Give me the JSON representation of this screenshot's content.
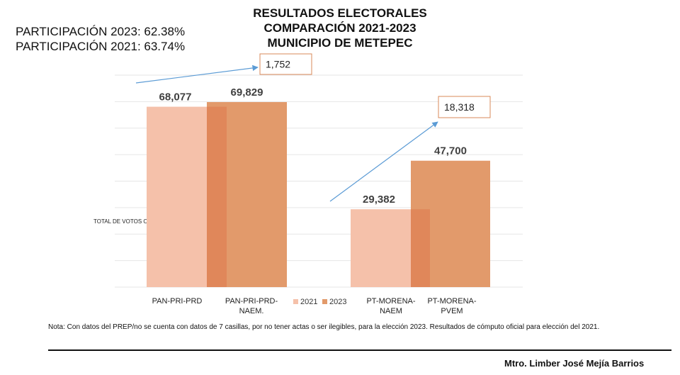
{
  "title_lines": [
    "RESULTADOS ELECTORALES",
    "COMPARACIÓN 2021-2023",
    "MUNICIPIO DE METEPEC"
  ],
  "participation": {
    "line_2023": "PARTICIPACIÓN 2023: 62.38%",
    "line_2021": "PARTICIPACIÓN 2021: 63.74%"
  },
  "note": "Nota: Con datos del PREP/no se cuenta con datos de 7 casillas, por no tener actas o ser ilegibles, para la elección 2023. Resultados de cómputo oficial para elección del 2021.",
  "author": "Mtro. Limber José Mejía Barrios",
  "colors": {
    "series_2021": "#f5c1aa",
    "series_2023": "#e29a6b",
    "overlap": "#e0875a",
    "gridline": "#e6e6e6",
    "arrow": "#5b9bd5",
    "callout_border": "#d9895a"
  },
  "chart_data": {
    "type": "bar",
    "ylabel": "TOTAL DE VOTOS OBTENIDOS",
    "ylim": [
      0,
      80000
    ],
    "grid": true,
    "legend_position": "bottom-center",
    "series": [
      {
        "name": "2021",
        "values": [
          68077,
          29382
        ]
      },
      {
        "name": "2023",
        "values": [
          69829,
          47700
        ]
      }
    ],
    "groups": [
      {
        "labels": [
          "PAN-PRI-PRD",
          "PAN-PRI-PRD-NAEM."
        ],
        "value_2021": 68077,
        "label_2021": "68,077",
        "value_2023": 69829,
        "label_2023": "69,829",
        "difference_label": "1,752"
      },
      {
        "labels": [
          "PT-MORENA-NAEM",
          "PT-MORENA-PVEM"
        ],
        "value_2021": 29382,
        "label_2021": "29,382",
        "value_2023": 47700,
        "label_2023": "47,700",
        "difference_label": "18,318"
      }
    ]
  }
}
